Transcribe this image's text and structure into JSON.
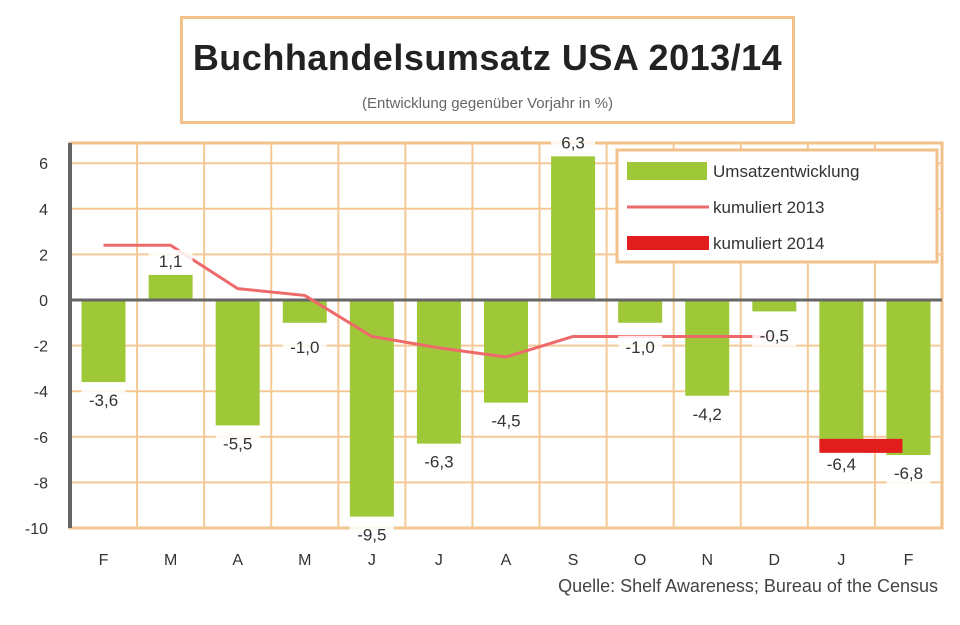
{
  "chart_data": {
    "type": "bar",
    "title": "Buchhandelsumsatz USA 2013/14",
    "subtitle": "(Entwicklung gegenüber Vorjahr in %)",
    "source": "Quelle: Shelf Awareness; Bureau of the Census",
    "categories": [
      "F",
      "M",
      "A",
      "M",
      "J",
      "J",
      "A",
      "S",
      "O",
      "N",
      "D",
      "J",
      "F"
    ],
    "ylim": [
      -10,
      7
    ],
    "yticks": [
      6,
      4,
      2,
      0,
      -2,
      -4,
      -6,
      -8,
      -10
    ],
    "ytick_labels": [
      "6",
      "4",
      "2",
      "0",
      "-2",
      "-4",
      "-6",
      "-8",
      "-10"
    ],
    "grid": true,
    "legend_position": "top-right",
    "series": [
      {
        "name": "Umsatzentwicklung",
        "kind": "bar",
        "color": "#9ec838",
        "values": [
          -3.6,
          1.1,
          -5.5,
          -1.0,
          -9.5,
          -6.3,
          -4.5,
          6.3,
          -1.0,
          -4.2,
          -0.5,
          -6.4,
          -6.8
        ],
        "labels": [
          "-3,6",
          "1,1",
          "-5,5",
          "-1,0",
          "-9,5",
          "-6,3",
          "-4,5",
          "6,3",
          "-1,0",
          "-4,2",
          "-0,5",
          "-6,4",
          "-6,8"
        ]
      },
      {
        "name": "kumuliert 2013",
        "kind": "line",
        "color": "#ee6a6a",
        "values": [
          2.4,
          2.4,
          0.5,
          0.2,
          -1.6,
          -2.1,
          -2.5,
          -1.6,
          -1.6,
          -1.6,
          -1.6,
          null,
          null
        ]
      },
      {
        "name": "kumuliert 2014",
        "kind": "line",
        "color": "#e21d1d",
        "values": [
          null,
          null,
          null,
          null,
          null,
          null,
          null,
          null,
          null,
          null,
          null,
          -6.4,
          -6.4
        ]
      }
    ]
  }
}
